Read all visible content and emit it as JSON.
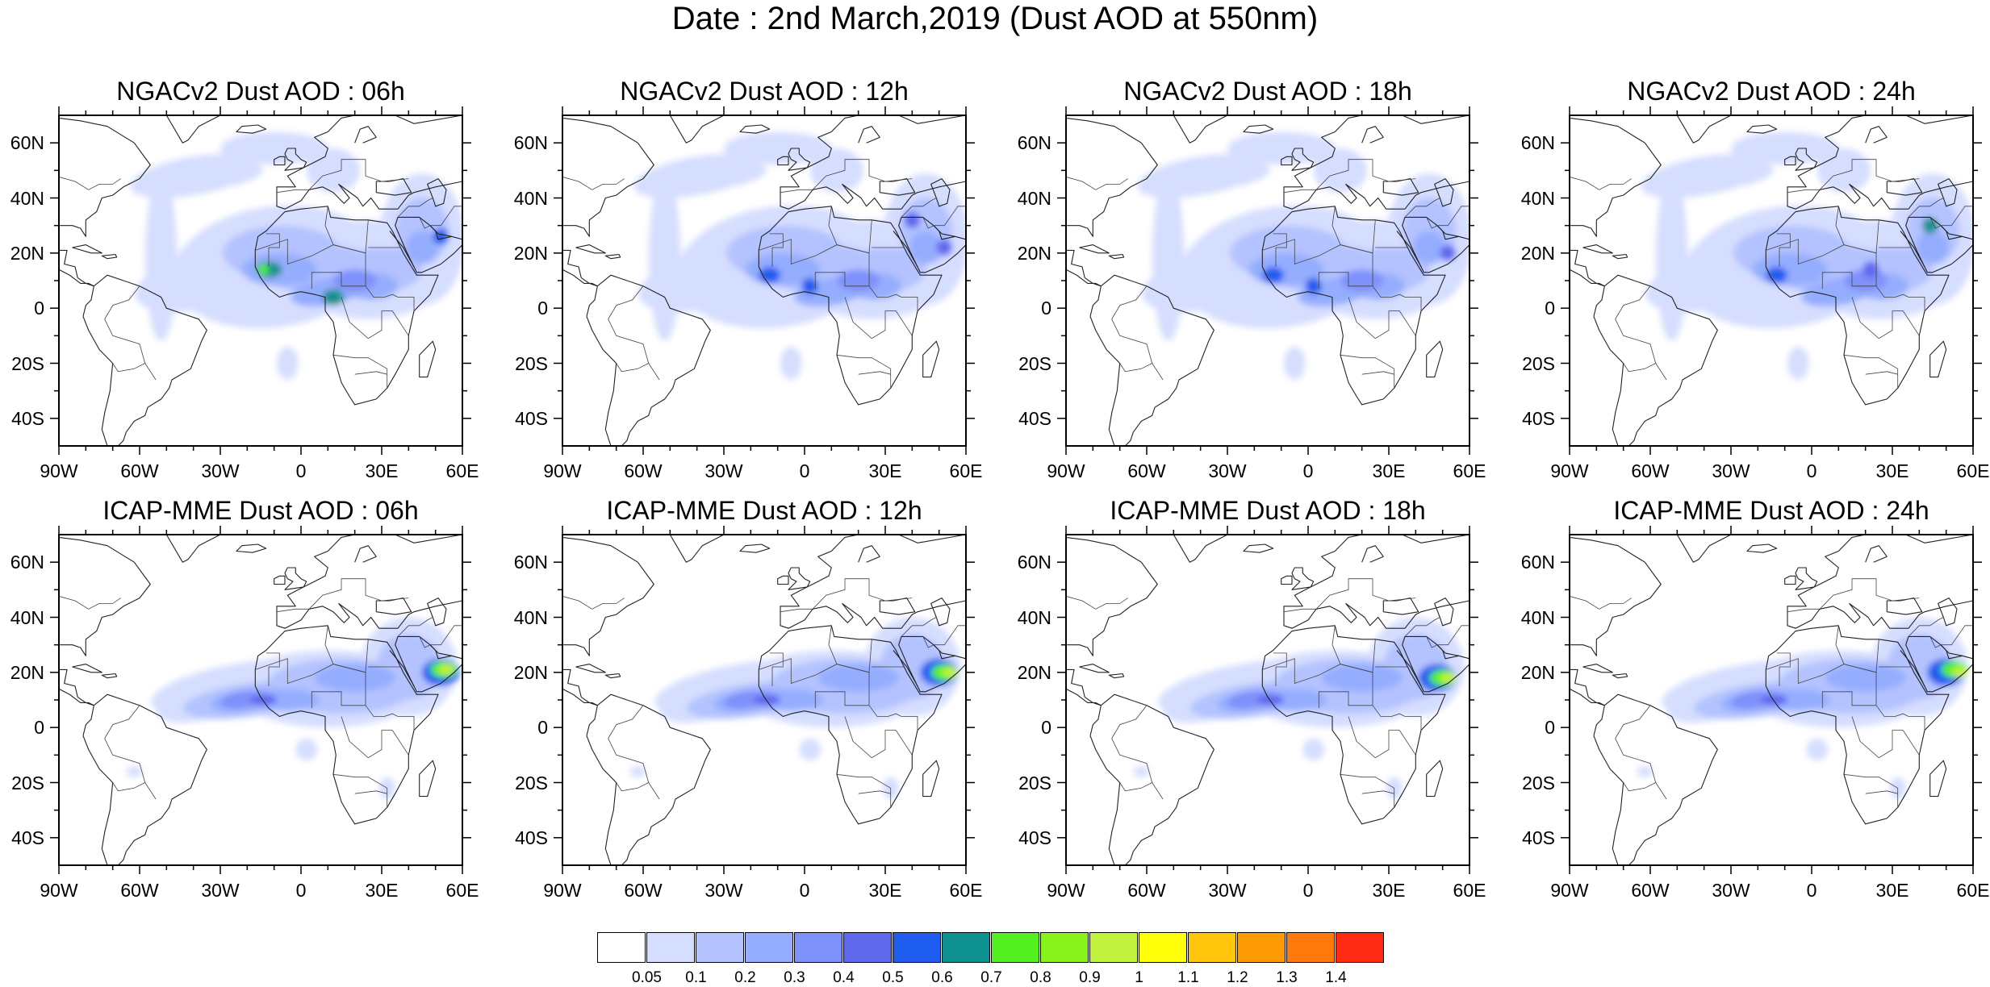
{
  "title": "Date : 2nd March,2019 (Dust AOD at 550nm)",
  "map": {
    "lat_labels": [
      "60N",
      "40N",
      "20N",
      "0",
      "20S",
      "40S"
    ],
    "lon_labels": [
      "90W",
      "60W",
      "30W",
      "0",
      "30E",
      "60E"
    ]
  },
  "panels": [
    {
      "title": "NGACv2 Dust AOD : 06h"
    },
    {
      "title": "NGACv2 Dust AOD : 12h"
    },
    {
      "title": "NGACv2 Dust AOD : 18h"
    },
    {
      "title": "NGACv2 Dust AOD : 24h"
    },
    {
      "title": "ICAP-MME Dust AOD : 06h"
    },
    {
      "title": "ICAP-MME Dust AOD : 12h"
    },
    {
      "title": "ICAP-MME Dust AOD : 18h"
    },
    {
      "title": "ICAP-MME Dust AOD : 24h"
    }
  ],
  "colorbar": {
    "labels": [
      "0.05",
      "0.1",
      "0.2",
      "0.3",
      "0.4",
      "0.5",
      "0.6",
      "0.7",
      "0.8",
      "0.9",
      "1",
      "1.1",
      "1.2",
      "1.3",
      "1.4"
    ],
    "colors": [
      "#ffffff",
      "#d6deff",
      "#b4c3ff",
      "#95adff",
      "#7f91fa",
      "#6068ee",
      "#1f5cf0",
      "#0f9191",
      "#54f01f",
      "#88f21d",
      "#c1f23e",
      "#ffff0a",
      "#ffc50a",
      "#ff9b05",
      "#ff7a0a",
      "#ff2a12"
    ]
  }
}
